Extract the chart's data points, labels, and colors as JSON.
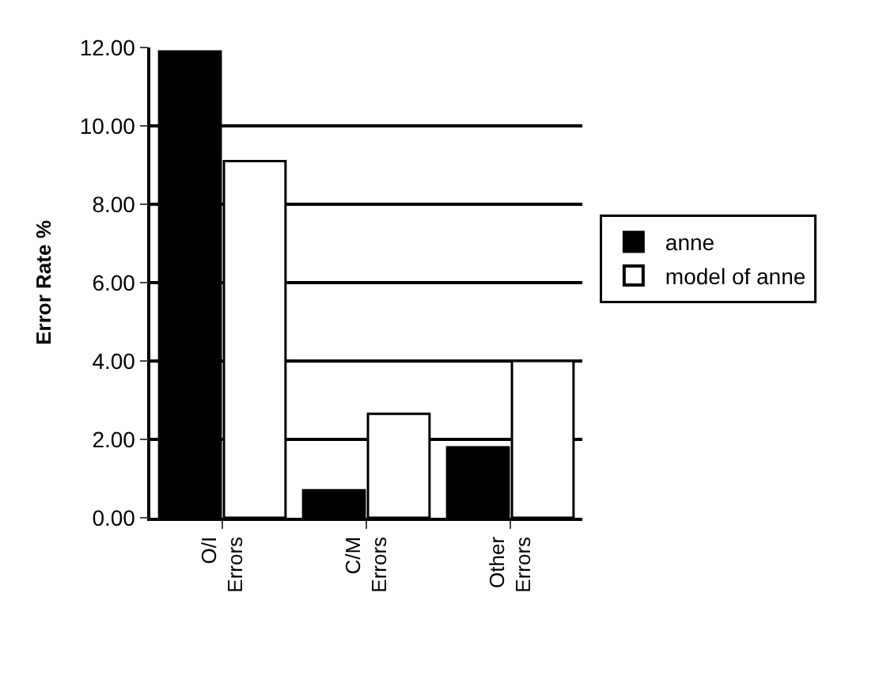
{
  "chart_data": {
    "type": "bar",
    "ylabel": "Error Rate %",
    "categories": [
      "O/I Errors",
      "C/M Errors",
      "Other Errors"
    ],
    "series": [
      {
        "name": "anne",
        "color": "#000000",
        "values": [
          11.9,
          0.7,
          1.8
        ]
      },
      {
        "name": "model of anne",
        "color": "#ffffff",
        "values": [
          9.1,
          2.65,
          4.0
        ]
      }
    ],
    "ylim": [
      0,
      12
    ],
    "yticks": [
      {
        "value": 0,
        "label": "0.00"
      },
      {
        "value": 2,
        "label": "2.00"
      },
      {
        "value": 4,
        "label": "4.00"
      },
      {
        "value": 6,
        "label": "6.00"
      },
      {
        "value": 8,
        "label": "8.00"
      },
      {
        "value": 10,
        "label": "10.00"
      },
      {
        "value": 12,
        "label": "12.00"
      }
    ],
    "grid": "y",
    "legend": "right"
  }
}
